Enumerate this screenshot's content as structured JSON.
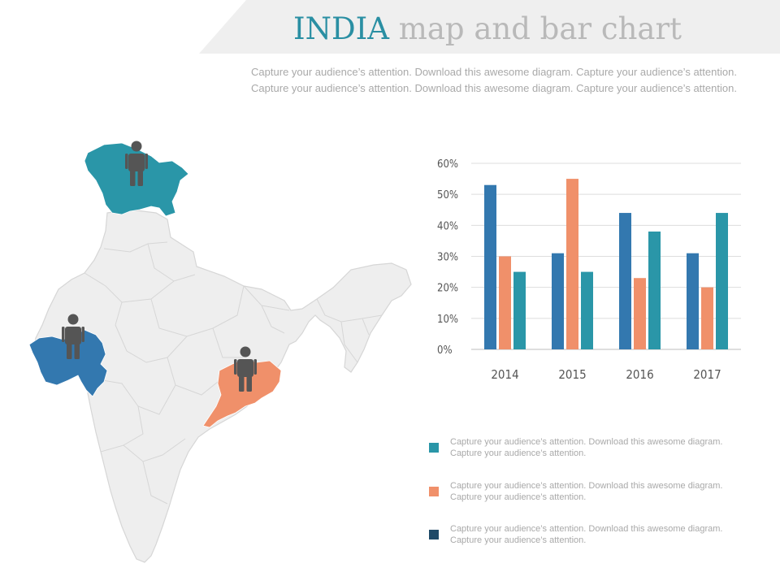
{
  "header": {
    "title_word1": "INDIA",
    "title_word2": "map and bar chart",
    "subtitle": "Capture your audience’s attention. Download this awesome diagram. Capture your audience’s attention. Capture your audience’s attention. Download this awesome diagram. Capture your audience’s attention."
  },
  "colors": {
    "teal": "#2a96a8",
    "orange": "#f0906a",
    "blue": "#3378af",
    "navy": "#1f4a68",
    "map_base": "#eeeeee",
    "map_border": "#d6d6d6",
    "person": "#555555"
  },
  "map": {
    "highlights": [
      {
        "region": "north",
        "color": "#2a96a8",
        "icon": "person-icon"
      },
      {
        "region": "west",
        "color": "#3378af",
        "icon": "person-icon"
      },
      {
        "region": "east",
        "color": "#f0906a",
        "icon": "person-icon"
      }
    ]
  },
  "chart_data": {
    "type": "bar",
    "categories": [
      "2014",
      "2015",
      "2016",
      "2017"
    ],
    "series": [
      {
        "color": "#3378af",
        "values": [
          53,
          31,
          44,
          31
        ]
      },
      {
        "color": "#f0906a",
        "values": [
          30,
          55,
          23,
          20
        ]
      },
      {
        "color": "#2a96a8",
        "values": [
          25,
          25,
          38,
          44
        ]
      }
    ],
    "yticks": [
      "0%",
      "10%",
      "20%",
      "30%",
      "40%",
      "50%",
      "60%"
    ],
    "ylim": [
      0,
      60
    ],
    "grid": true
  },
  "legend": [
    {
      "color": "#2a96a8",
      "text": "Capture your audience’s attention. Download this awesome diagram. Capture your audience’s attention."
    },
    {
      "color": "#f0906a",
      "text": "Capture your audience’s attention. Download this awesome diagram. Capture your audience’s attention."
    },
    {
      "color": "#1f4a68",
      "text": "Capture your audience’s attention. Download this awesome diagram. Capture your audience’s attention."
    }
  ]
}
